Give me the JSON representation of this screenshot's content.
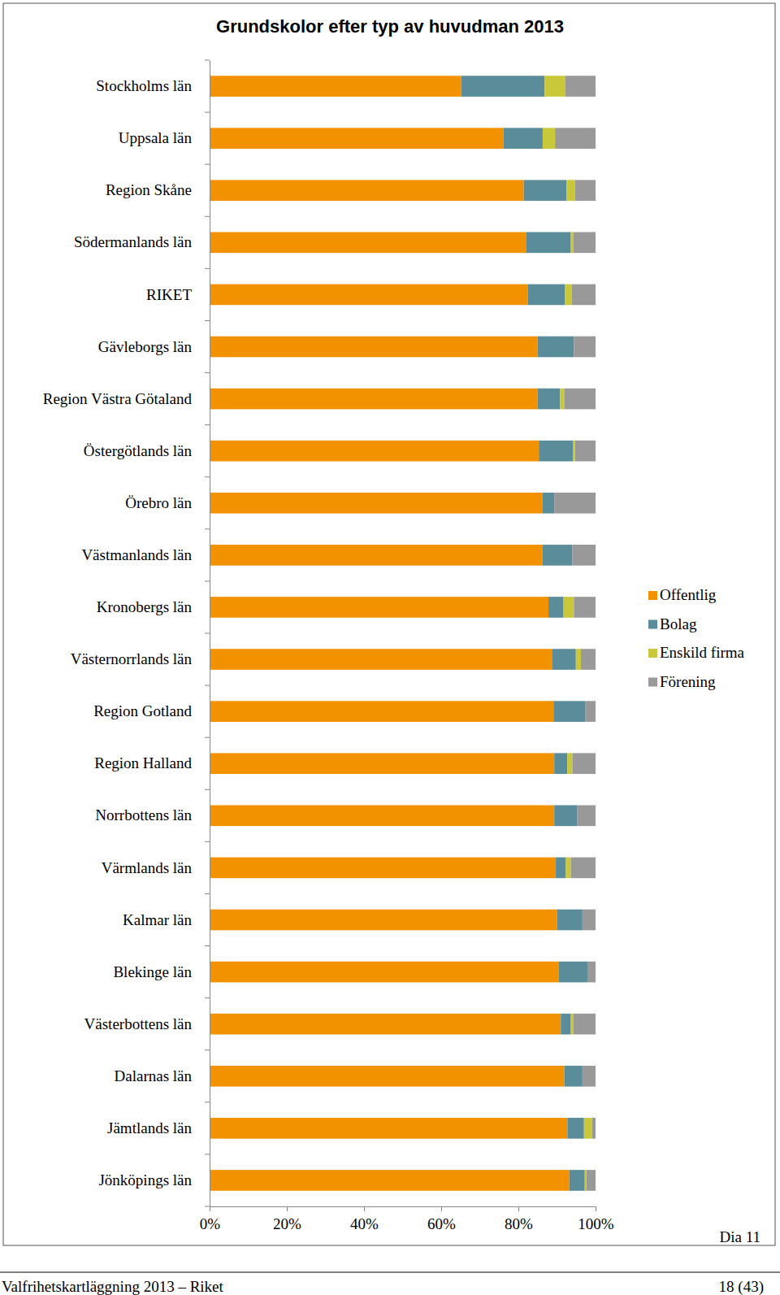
{
  "chart_data": {
    "type": "bar",
    "title": "Grundskolor efter typ av huvudman 2013",
    "orientation": "horizontal",
    "stacked": true,
    "grid": false,
    "legend": "right",
    "categories": [
      "Stockholms län",
      "Uppsala län",
      "Region Skåne",
      "Södermanlands län",
      "RIKET",
      "Gävleborgs län",
      "Region Västra Götaland",
      "Östergötlands län",
      "Örebro län",
      "Västmanlands län",
      "Kronobergs län",
      "Västernorrlands län",
      "Region Gotland",
      "Region Halland",
      "Norrbottens län",
      "Värmlands län",
      "Kalmar län",
      "Blekinge län",
      "Västerbottens län",
      "Dalarnas län",
      "Jämtlands län",
      "Jönköpings län"
    ],
    "series": [
      {
        "name": "Offentlig",
        "color": "#f39200",
        "values": [
          65.2,
          76.1,
          81.4,
          82.1,
          82.5,
          85.0,
          85.0,
          85.3,
          86.3,
          86.3,
          87.8,
          88.7,
          89.1,
          89.3,
          89.3,
          89.7,
          90.0,
          90.4,
          91.0,
          91.9,
          92.7,
          93.2
        ]
      },
      {
        "name": "Bolag",
        "color": "#5b8c99",
        "values": [
          21.6,
          10.2,
          11.1,
          11.5,
          9.6,
          9.4,
          5.8,
          8.9,
          3.0,
          7.7,
          3.9,
          6.2,
          8.3,
          3.4,
          6.0,
          2.6,
          6.6,
          7.5,
          2.6,
          4.7,
          4.3,
          4.0
        ]
      },
      {
        "name": "Enskild firma",
        "color": "#c8c83a",
        "values": [
          5.3,
          3.2,
          2.2,
          0.6,
          1.7,
          0,
          1.1,
          0.5,
          0,
          0,
          2.7,
          1.3,
          0,
          1.3,
          0,
          1.3,
          0,
          0,
          0.6,
          0,
          2.1,
          0.4
        ]
      },
      {
        "name": "Förening",
        "color": "#999999",
        "values": [
          7.9,
          10.5,
          5.3,
          5.8,
          6.2,
          5.6,
          8.1,
          5.3,
          10.7,
          6.0,
          5.6,
          3.8,
          2.6,
          6.0,
          4.7,
          6.4,
          3.4,
          2.1,
          5.8,
          3.4,
          0.9,
          2.4
        ]
      }
    ],
    "xlim": [
      0,
      100
    ],
    "xticks": [
      {
        "value": 0,
        "label": "0%"
      },
      {
        "value": 20,
        "label": "20%"
      },
      {
        "value": 40,
        "label": "40%"
      },
      {
        "value": 60,
        "label": "60%"
      },
      {
        "value": 80,
        "label": "80%"
      },
      {
        "value": 100,
        "label": "100%"
      }
    ],
    "annotations": [
      "Dia 11",
      "Valfrihetskartläggning 2013 – Riket",
      "18 (43)"
    ]
  }
}
